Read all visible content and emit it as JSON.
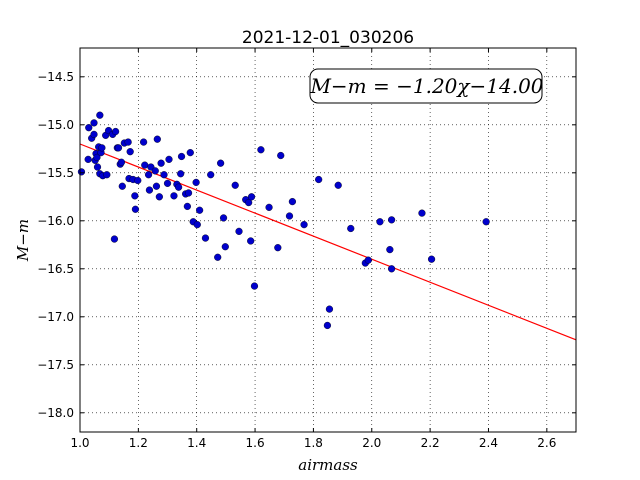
{
  "chart_data": {
    "type": "scatter",
    "title": "2021-12-01_030206",
    "xlabel": "airmass",
    "ylabel": "M−m",
    "xlim": [
      1.0,
      2.7
    ],
    "ylim": [
      -18.2,
      -14.2
    ],
    "y_inverted": true,
    "grid": true,
    "x_ticks": [
      1.0,
      1.2,
      1.4,
      1.6,
      1.8,
      2.0,
      2.2,
      2.4,
      2.6
    ],
    "x_tick_labels": [
      "1.0",
      "1.2",
      "1.4",
      "1.6",
      "1.8",
      "2.0",
      "2.2",
      "2.4",
      "2.6"
    ],
    "y_ticks": [
      -14.5,
      -15.0,
      -15.5,
      -16.0,
      -16.5,
      -17.0,
      -17.5,
      -18.0
    ],
    "y_tick_labels": [
      "−14.5",
      "−15.0",
      "−15.5",
      "−16.0",
      "−16.5",
      "−17.0",
      "−17.5",
      "−18.0"
    ],
    "annotation": "M−m = −1.20χ−14.00",
    "fit": {
      "slope": -1.2,
      "intercept": -14.0,
      "color": "#ff0000"
    },
    "point_color": "#0000cc",
    "points": [
      [
        1.005,
        -15.49
      ],
      [
        1.028,
        -15.36
      ],
      [
        1.03,
        -15.03
      ],
      [
        1.04,
        -15.14
      ],
      [
        1.048,
        -15.1
      ],
      [
        1.048,
        -14.98
      ],
      [
        1.052,
        -15.37
      ],
      [
        1.055,
        -15.3
      ],
      [
        1.058,
        -15.34
      ],
      [
        1.06,
        -15.44
      ],
      [
        1.064,
        -15.23
      ],
      [
        1.068,
        -14.9
      ],
      [
        1.068,
        -15.51
      ],
      [
        1.072,
        -15.29
      ],
      [
        1.075,
        -15.24
      ],
      [
        1.078,
        -15.53
      ],
      [
        1.088,
        -15.11
      ],
      [
        1.092,
        -15.52
      ],
      [
        1.098,
        -15.06
      ],
      [
        1.112,
        -15.1
      ],
      [
        1.118,
        -16.19
      ],
      [
        1.122,
        -15.07
      ],
      [
        1.128,
        -15.24
      ],
      [
        1.132,
        -15.24
      ],
      [
        1.138,
        -15.41
      ],
      [
        1.142,
        -15.39
      ],
      [
        1.145,
        -15.64
      ],
      [
        1.152,
        -15.19
      ],
      [
        1.165,
        -15.18
      ],
      [
        1.168,
        -15.56
      ],
      [
        1.172,
        -15.28
      ],
      [
        1.182,
        -15.57
      ],
      [
        1.188,
        -15.74
      ],
      [
        1.19,
        -15.88
      ],
      [
        1.198,
        -15.58
      ],
      [
        1.218,
        -15.18
      ],
      [
        1.222,
        -15.42
      ],
      [
        1.235,
        -15.52
      ],
      [
        1.238,
        -15.68
      ],
      [
        1.243,
        -15.44
      ],
      [
        1.258,
        -15.48
      ],
      [
        1.262,
        -15.64
      ],
      [
        1.265,
        -15.15
      ],
      [
        1.272,
        -15.75
      ],
      [
        1.278,
        -15.4
      ],
      [
        1.288,
        -15.52
      ],
      [
        1.3,
        -15.61
      ],
      [
        1.305,
        -15.36
      ],
      [
        1.322,
        -15.74
      ],
      [
        1.332,
        -15.62
      ],
      [
        1.338,
        -15.65
      ],
      [
        1.345,
        -15.51
      ],
      [
        1.348,
        -15.33
      ],
      [
        1.362,
        -15.72
      ],
      [
        1.368,
        -15.85
      ],
      [
        1.372,
        -15.71
      ],
      [
        1.378,
        -15.29
      ],
      [
        1.388,
        -16.01
      ],
      [
        1.398,
        -15.6
      ],
      [
        1.402,
        -16.04
      ],
      [
        1.41,
        -15.89
      ],
      [
        1.43,
        -16.18
      ],
      [
        1.448,
        -15.52
      ],
      [
        1.472,
        -16.38
      ],
      [
        1.482,
        -15.4
      ],
      [
        1.492,
        -15.97
      ],
      [
        1.498,
        -16.27
      ],
      [
        1.532,
        -15.63
      ],
      [
        1.545,
        -16.11
      ],
      [
        1.568,
        -15.78
      ],
      [
        1.578,
        -15.81
      ],
      [
        1.585,
        -16.21
      ],
      [
        1.588,
        -15.75
      ],
      [
        1.598,
        -16.68
      ],
      [
        1.62,
        -15.26
      ],
      [
        1.648,
        -15.86
      ],
      [
        1.678,
        -16.28
      ],
      [
        1.688,
        -15.32
      ],
      [
        1.718,
        -15.95
      ],
      [
        1.728,
        -15.8
      ],
      [
        1.768,
        -16.04
      ],
      [
        1.818,
        -15.57
      ],
      [
        1.848,
        -17.09
      ],
      [
        1.855,
        -16.92
      ],
      [
        1.885,
        -15.63
      ],
      [
        1.928,
        -16.08
      ],
      [
        1.978,
        -16.44
      ],
      [
        1.988,
        -16.41
      ],
      [
        2.028,
        -16.01
      ],
      [
        2.062,
        -16.3
      ],
      [
        2.068,
        -16.5
      ],
      [
        2.068,
        -15.99
      ],
      [
        2.172,
        -15.92
      ],
      [
        2.205,
        -16.4
      ],
      [
        2.392,
        -16.01
      ]
    ]
  }
}
